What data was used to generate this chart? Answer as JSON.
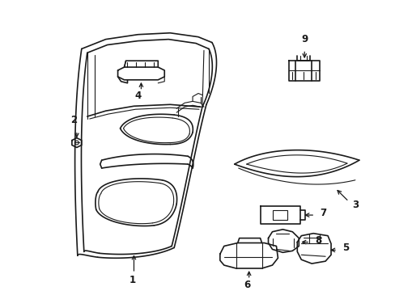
{
  "background_color": "#ffffff",
  "line_color": "#1a1a1a",
  "fig_width": 4.89,
  "fig_height": 3.6,
  "dpi": 100,
  "lw_main": 1.2,
  "lw_inner": 0.8,
  "arrow_fs": 7,
  "label_fs": 8.5
}
